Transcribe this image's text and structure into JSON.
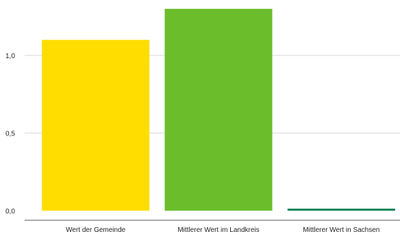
{
  "chart_data": {
    "type": "bar",
    "title": "",
    "xlabel": "",
    "ylabel": "",
    "categories": [
      "Wert der Gemeinde",
      "Mittlerer Wert im Landkreis",
      "Mittlerer Wert in Sachsen"
    ],
    "values": [
      1.1,
      1.3,
      0.01
    ],
    "colors": [
      "#ffdd00",
      "#6bbd2c",
      "#00875a"
    ],
    "ylim": [
      0,
      1.3
    ],
    "yticks": [
      0.0,
      0.5,
      1.0
    ],
    "ytick_labels": [
      "0,0",
      "0,5",
      "1,0"
    ],
    "grid": true,
    "legend": "none"
  }
}
